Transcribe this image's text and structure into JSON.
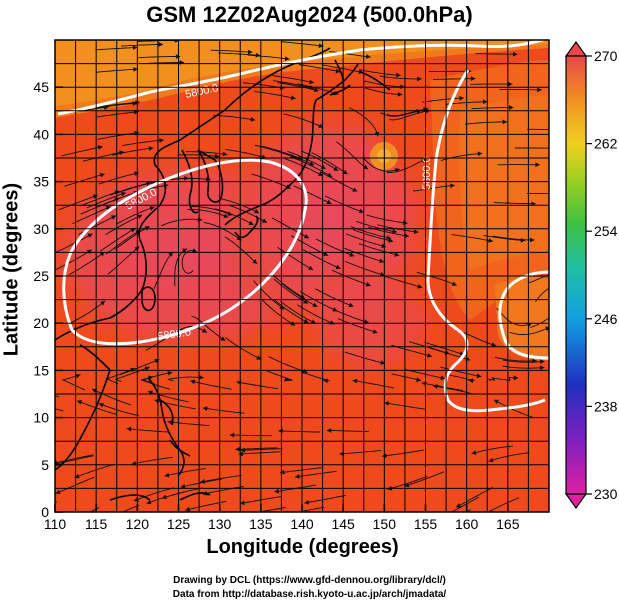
{
  "title": "GSM 12Z02Aug2024 (500.0hPa)",
  "xaxis": {
    "label": "Longitude (degrees)",
    "range": [
      110,
      170
    ],
    "ticks": [
      "110",
      "115",
      "120",
      "125",
      "130",
      "135",
      "140",
      "145",
      "150",
      "155",
      "160",
      "165"
    ]
  },
  "yaxis": {
    "label": "Latitude  (degrees)",
    "range": [
      0,
      50
    ],
    "ticks": [
      "0",
      "5",
      "10",
      "15",
      "20",
      "25",
      "30",
      "35",
      "40",
      "45"
    ]
  },
  "colorbar": {
    "range": [
      230,
      270
    ],
    "ticks": [
      "230",
      "238",
      "246",
      "254",
      "262",
      "270"
    ]
  },
  "contour_label": "5800.0",
  "credits": {
    "line1": "Drawing by DCL (https://www.gfd-dennou.org/library/dcl/)",
    "line2": "Data from http://database.rish.kyoto-u.ac.jp/arch/jmadata/"
  },
  "colors": {
    "background_field": "#ee4a1c",
    "warm_core": "#e8475a",
    "contour": "#ffffff"
  }
}
